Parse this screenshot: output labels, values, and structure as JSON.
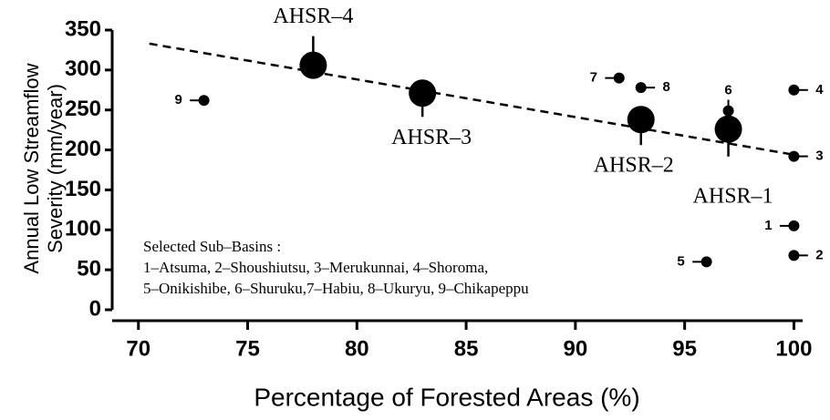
{
  "chart_data": {
    "type": "scatter",
    "xlabel": "Percentage of Forested Areas (%)",
    "ylabel": [
      "Annual Low Streamflow",
      "Severity (mm/year)"
    ],
    "xlim": [
      68.8,
      100.4
    ],
    "ylim": [
      0,
      350
    ],
    "xticks": [
      70,
      75,
      80,
      85,
      90,
      95,
      100
    ],
    "yticks": [
      0,
      50,
      100,
      150,
      200,
      250,
      300,
      350
    ],
    "series": [
      {
        "name": "Sub-Basins",
        "color": "#000000",
        "size": "small",
        "labels": [
          "1",
          "2",
          "3",
          "4",
          "5",
          "6",
          "7",
          "8",
          "9"
        ],
        "x": [
          100,
          100,
          100,
          100,
          96,
          97,
          92,
          93,
          73
        ],
        "values": [
          105,
          68,
          192,
          275,
          60,
          249,
          290,
          278,
          262
        ]
      },
      {
        "name": "AHSR",
        "color": "#000000",
        "size": "large",
        "labels": [
          "AHSR–1",
          "AHSR–2",
          "AHSR–3",
          "AHSR–4"
        ],
        "x": [
          97,
          93,
          83,
          78
        ],
        "values": [
          226,
          238,
          271,
          306
        ]
      }
    ],
    "trendline": {
      "x": [
        70.5,
        100
      ],
      "values": [
        333,
        194
      ]
    },
    "legend_title": "Selected Sub–Basins :",
    "legend_lines": [
      "1–Atsuma, 2–Shoushiutsu, 3–Merukunnai, 4–Shoroma,",
      "5–Onikishibe, 6–Shuruku,7–Habiu, 8–Ukuryu, 9–Chikapeppu"
    ]
  }
}
